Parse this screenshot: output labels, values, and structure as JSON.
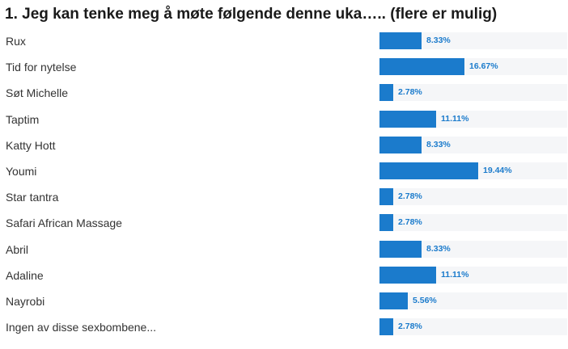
{
  "chart_data": {
    "type": "bar",
    "orientation": "horizontal",
    "title": "1. Jeg kan tenke meg å møte følgende denne uka….. (flere er mulig)",
    "categories": [
      "Rux",
      "Tid for nytelse",
      "Søt Michelle",
      "Taptim",
      "Katty Hott",
      "Youmi",
      "Star tantra",
      "Safari African Massage",
      "Abril",
      "Adaline",
      "Nayrobi",
      "Ingen av disse sexbombene..."
    ],
    "values": [
      8.33,
      16.67,
      2.78,
      11.11,
      8.33,
      19.44,
      2.78,
      2.78,
      8.33,
      11.11,
      5.56,
      2.78
    ],
    "value_labels": [
      "8.33%",
      "16.67%",
      "2.78%",
      "11.11%",
      "8.33%",
      "19.44%",
      "2.78%",
      "2.78%",
      "8.33%",
      "11.11%",
      "5.56%",
      "2.78%"
    ],
    "xlim": [
      0,
      37
    ],
    "unit": "%"
  },
  "colors": {
    "bar": "#1b7bcc",
    "track": "#f5f6f8",
    "value_label": "#1b7bcc",
    "text": "#333333"
  }
}
